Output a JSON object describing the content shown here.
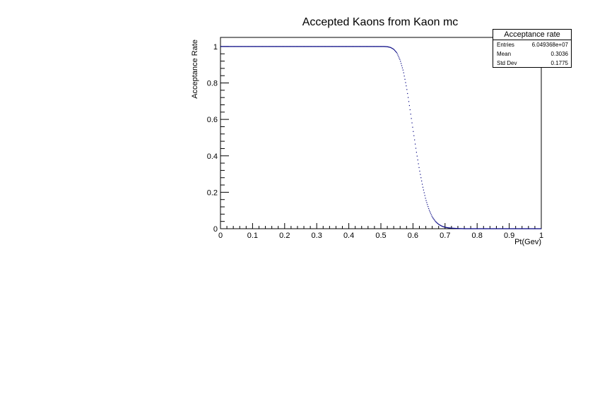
{
  "chart_data": {
    "type": "scatter",
    "title": "Accepted Kaons from Kaon mc",
    "xlabel": "Pt(Gev)",
    "ylabel": "Acceptance Rate",
    "xlim": [
      0,
      1
    ],
    "ylim": [
      0,
      1.05
    ],
    "xticks": [
      "0",
      "0.1",
      "0.2",
      "0.3",
      "0.4",
      "0.5",
      "0.6",
      "0.7",
      "0.8",
      "0.9",
      "1"
    ],
    "yticks": [
      "0",
      "0.2",
      "0.4",
      "0.6",
      "0.8",
      "1"
    ],
    "series": [
      {
        "x": [
          0.0,
          0.05,
          0.1,
          0.15,
          0.2,
          0.25,
          0.3,
          0.35,
          0.4,
          0.45,
          0.5,
          0.51,
          0.52,
          0.53,
          0.54,
          0.55,
          0.56,
          0.57,
          0.58,
          0.59,
          0.6,
          0.61,
          0.62,
          0.63,
          0.64,
          0.65,
          0.66,
          0.67,
          0.68,
          0.69,
          0.7,
          0.71,
          0.72,
          0.73,
          0.74,
          0.75,
          0.76,
          0.78,
          0.8,
          0.85,
          0.9,
          0.95,
          1.0
        ],
        "y": [
          1.0,
          1.0,
          1.0,
          1.0,
          1.0,
          1.0,
          1.0,
          1.0,
          1.0,
          1.0,
          1.0,
          1.0,
          0.999,
          0.995,
          0.985,
          0.965,
          0.925,
          0.865,
          0.775,
          0.665,
          0.545,
          0.43,
          0.325,
          0.235,
          0.16,
          0.105,
          0.065,
          0.04,
          0.024,
          0.014,
          0.008,
          0.005,
          0.003,
          0.002,
          0.001,
          0.0005,
          0.0,
          0.0,
          0.0,
          0.0,
          0.0,
          0.0,
          0.0
        ]
      }
    ],
    "grid": false,
    "color": "#000080"
  },
  "stats": {
    "title": "Acceptance rate",
    "rows": [
      {
        "label": "Entries",
        "value": "6.049368e+07"
      },
      {
        "label": "Mean",
        "value": "0.3036"
      },
      {
        "label": "Std Dev",
        "value": "0.1775"
      }
    ]
  }
}
